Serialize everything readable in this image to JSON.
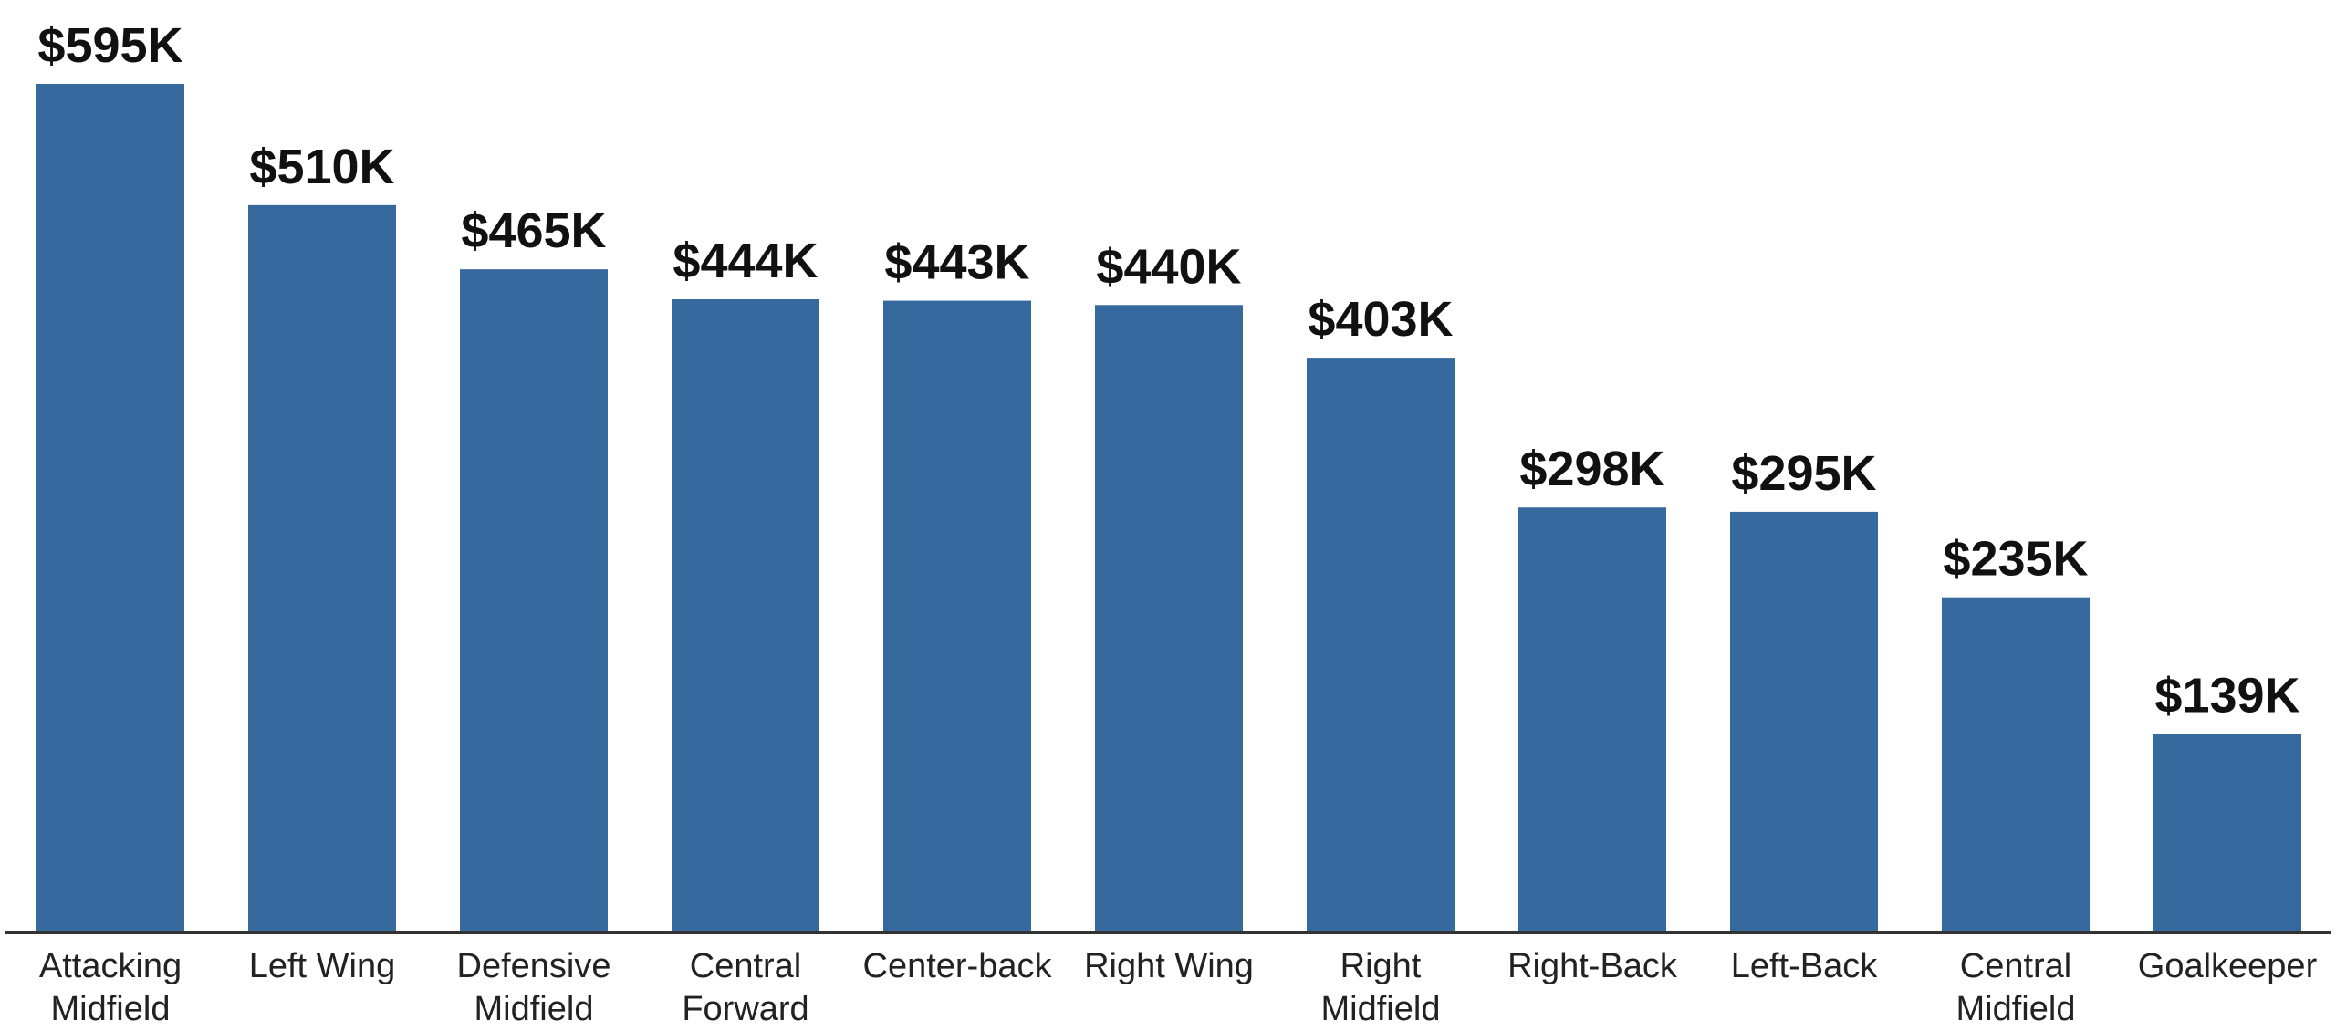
{
  "chart_data": {
    "type": "bar",
    "categories": [
      [
        "Attacking",
        "Midfield"
      ],
      [
        "Left Wing"
      ],
      [
        "Defensive",
        "Midfield"
      ],
      [
        "Central",
        "Forward"
      ],
      [
        "Center-back"
      ],
      [
        "Right Wing"
      ],
      [
        "Right",
        "Midfield"
      ],
      [
        "Right-Back"
      ],
      [
        "Left-Back"
      ],
      [
        "Central",
        "Midfield"
      ],
      [
        "Goalkeeper"
      ]
    ],
    "values": [
      595,
      510,
      465,
      444,
      443,
      440,
      403,
      298,
      295,
      235,
      139
    ],
    "value_labels": [
      "$595K",
      "$510K",
      "$465K",
      "$444K",
      "$443K",
      "$440K",
      "$403K",
      "$298K",
      "$295K",
      "$235K",
      "$139K"
    ],
    "title": "",
    "xlabel": "",
    "ylabel": "",
    "ylim": [
      0,
      595
    ],
    "grid": false,
    "legend": "none",
    "bar_color": "#366a9f",
    "axis_color": "#333333"
  }
}
